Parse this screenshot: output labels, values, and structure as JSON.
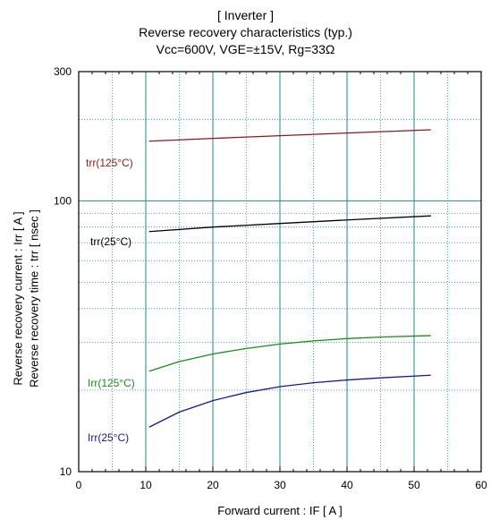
{
  "chart_data": {
    "type": "line",
    "title_lines": [
      "[ Inverter ]",
      "Reverse recovery characteristics  (typ.)",
      "Vcc=600V, VGE=±15V, Rg=33Ω"
    ],
    "xlabel": "Forward current : IF [ A ]",
    "ylabel_lines": [
      "Reverse recovery current : Irr [ A ]",
      "Reverse recovery time : trr [ nsec ]"
    ],
    "xlim": [
      0,
      60
    ],
    "ylim": [
      10,
      300
    ],
    "yscale": "log",
    "x_ticks": [
      0,
      10,
      20,
      30,
      40,
      50,
      60
    ],
    "y_ticks": [
      10,
      100,
      300
    ],
    "grid": true,
    "series": [
      {
        "name": "trr(125°C)",
        "color": "#8b1a1a",
        "x": [
          10.5,
          20,
          30,
          40,
          52.5
        ],
        "y": [
          166,
          170,
          174,
          178,
          183
        ]
      },
      {
        "name": "trr(25°C)",
        "color": "#000000",
        "x": [
          10.5,
          20,
          30,
          40,
          52.5
        ],
        "y": [
          77,
          80,
          82.5,
          85,
          88
        ]
      },
      {
        "name": "Irr(125°C)",
        "color": "#1a8c1a",
        "x": [
          10.5,
          15,
          20,
          25,
          30,
          35,
          40,
          45,
          52.5
        ],
        "y": [
          23.5,
          25.5,
          27.2,
          28.5,
          29.6,
          30.4,
          31,
          31.4,
          31.8
        ]
      },
      {
        "name": "Irr(25°C)",
        "color": "#1a1a8c",
        "x": [
          10.5,
          15,
          20,
          25,
          30,
          35,
          40,
          45,
          52.5
        ],
        "y": [
          14.6,
          16.6,
          18.3,
          19.6,
          20.6,
          21.3,
          21.8,
          22.2,
          22.7
        ]
      }
    ]
  }
}
